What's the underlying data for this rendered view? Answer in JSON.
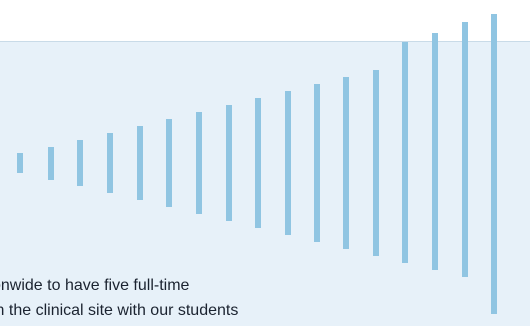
{
  "text": {
    "line1": "onwide to have five full-time",
    "line2": "in the clinical site with our students"
  },
  "colors": {
    "panel": "#e7f1f9",
    "bars": "#90c5e2",
    "text": "#1b2330"
  }
}
